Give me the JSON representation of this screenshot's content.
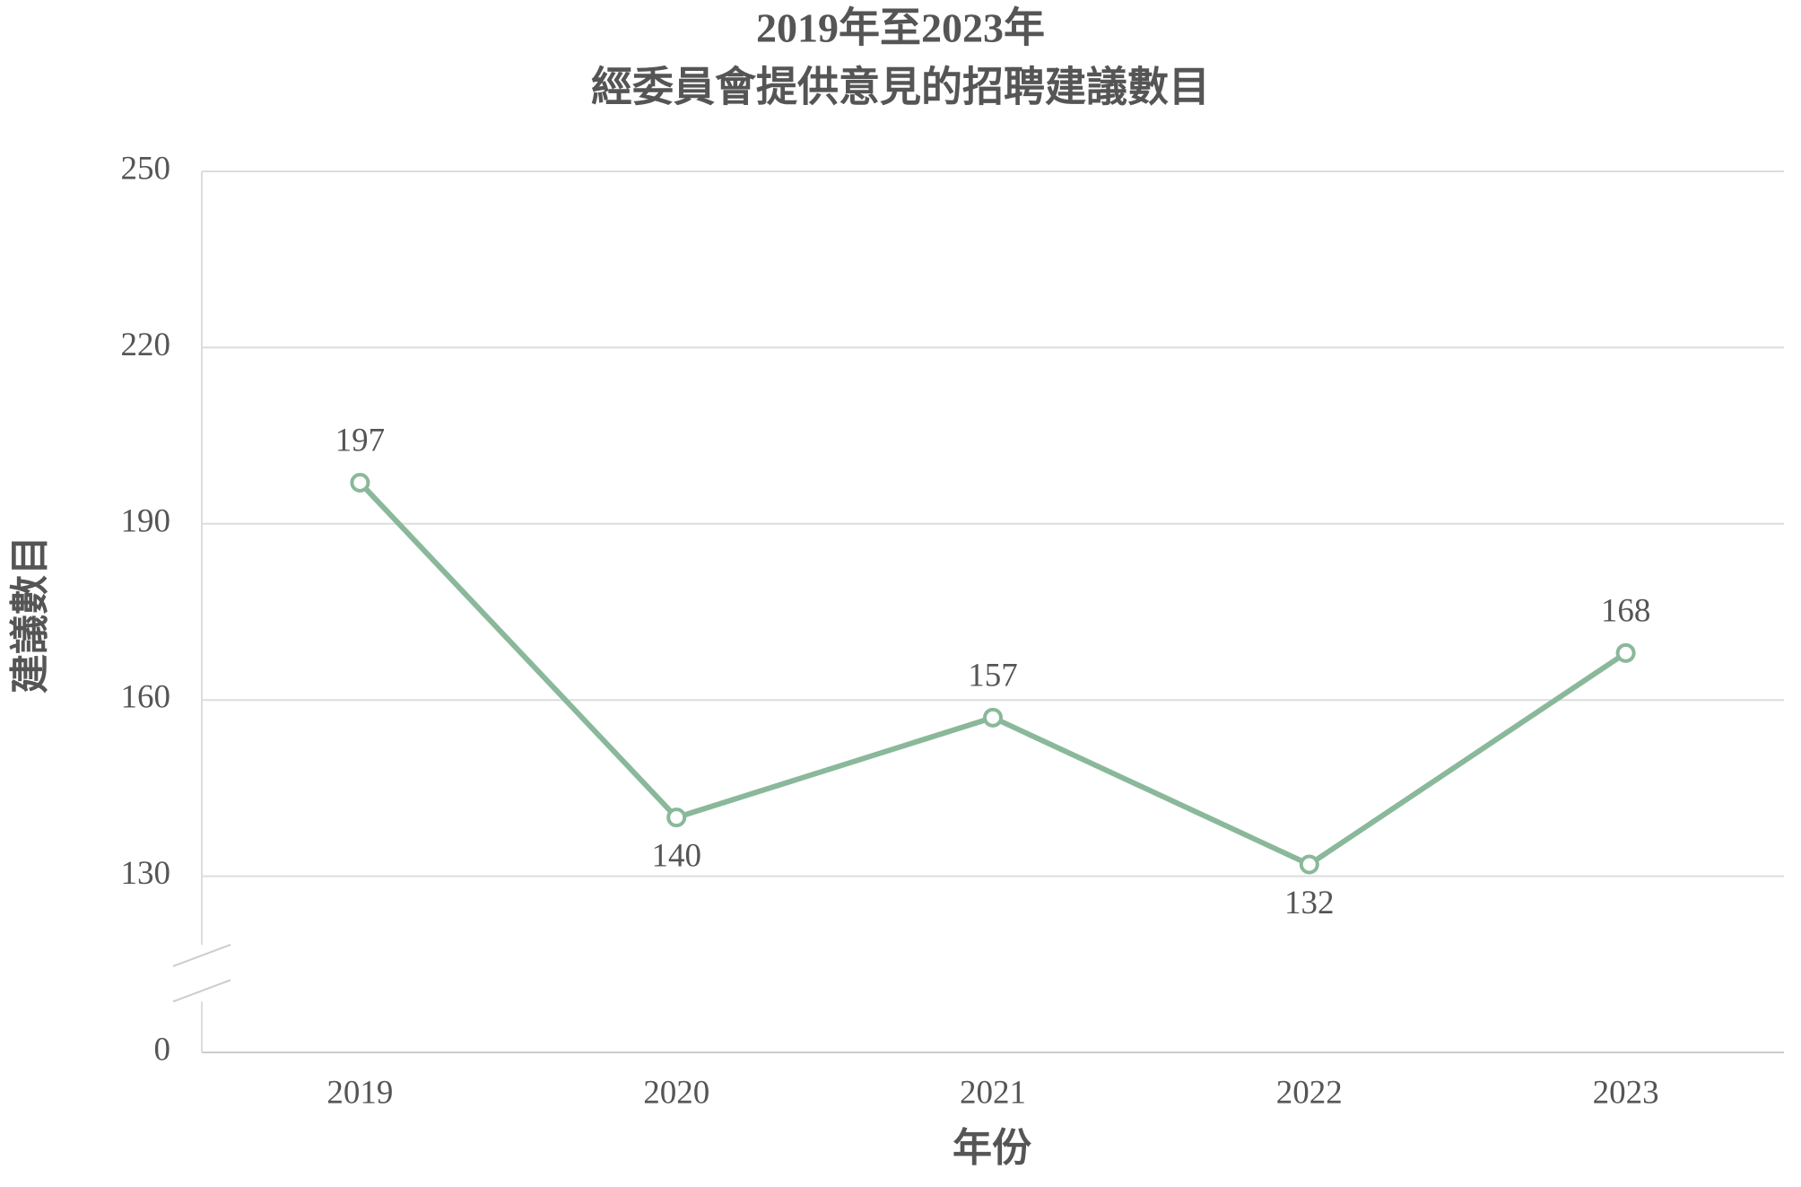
{
  "chart_data": {
    "type": "line",
    "title": [
      "2019年至2023年",
      "經委員會提供意見的招聘建議數目"
    ],
    "x_label": "年份",
    "y_label": "建議數目",
    "categories": [
      "2019",
      "2020",
      "2021",
      "2022",
      "2023"
    ],
    "series": [
      {
        "name": "建議數目",
        "color": "#8ab89a",
        "values": [
          197,
          140,
          157,
          132,
          168
        ]
      }
    ],
    "ylim": [
      0,
      250
    ],
    "yticks": [
      0,
      130,
      160,
      190,
      220,
      250
    ],
    "axis_break": true,
    "grid": true,
    "data_labels": true
  }
}
